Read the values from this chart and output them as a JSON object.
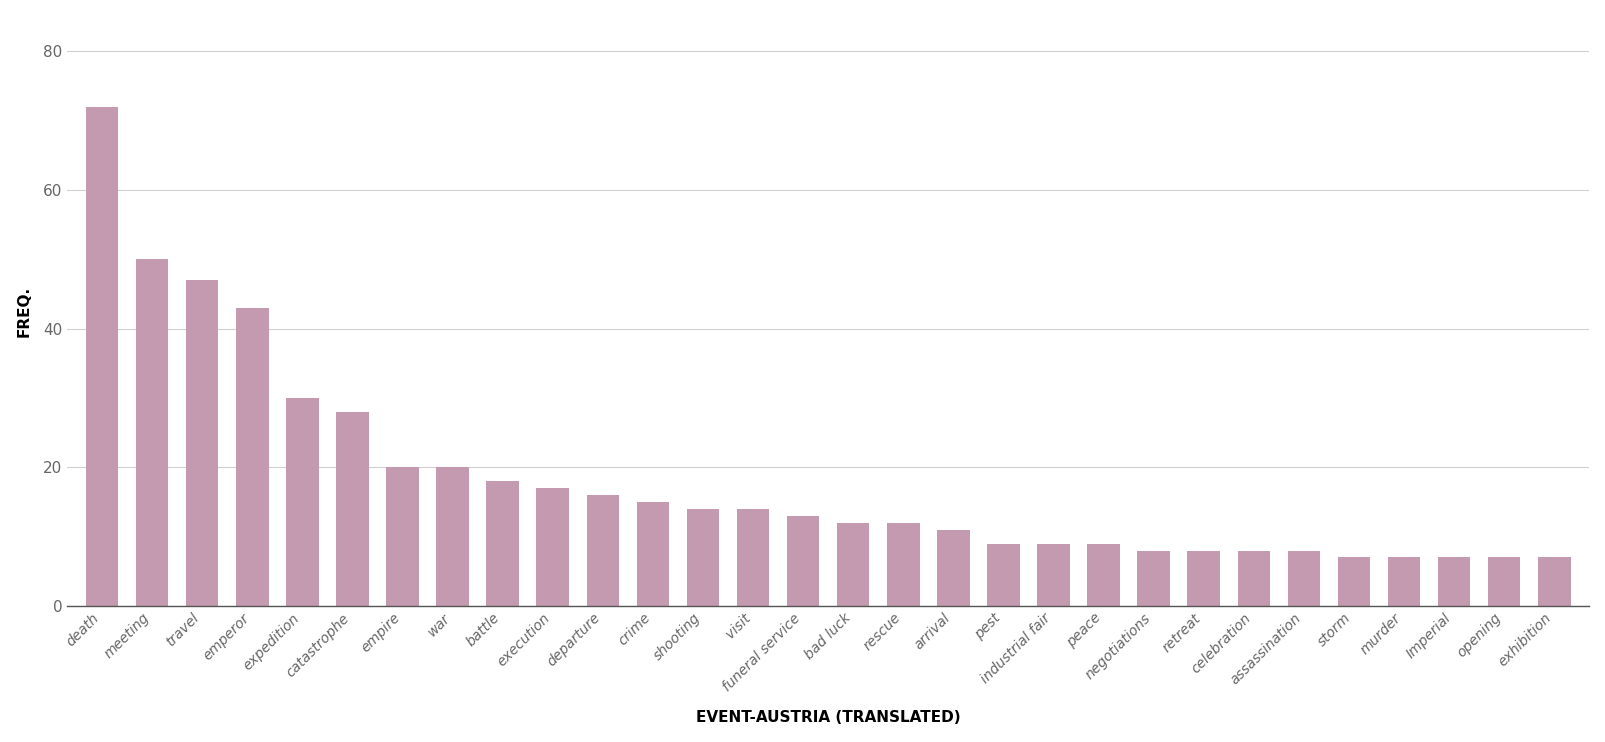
{
  "categories": [
    "death",
    "meeting",
    "travel",
    "emperor",
    "expedition",
    "catastrophe",
    "empire",
    "war",
    "battle",
    "execution",
    "departure",
    "crime",
    "shooting",
    "visit",
    "funeral service",
    "bad luck",
    "rescue",
    "arrival",
    "pest",
    "industrial fair",
    "peace",
    "negotiations",
    "retreat",
    "celebration",
    "assassination",
    "storm",
    "murder",
    "Imperial",
    "opening",
    "exhibition"
  ],
  "values": [
    72,
    50,
    47,
    43,
    30,
    28,
    20,
    20,
    18,
    17,
    16,
    15,
    14,
    14,
    13,
    12,
    12,
    11,
    9,
    9,
    9,
    8,
    8,
    8,
    8,
    7,
    7,
    7,
    7,
    7
  ],
  "bar_color": "#c49ab0",
  "xlabel": "EVENT-AUSTRIA (TRANSLATED)",
  "ylabel": "FREQ.",
  "ylim": [
    0,
    85
  ],
  "yticks": [
    0,
    20,
    40,
    60,
    80
  ],
  "background_color": "#ffffff",
  "grid_color": "#d0d0d0",
  "xlabel_fontsize": 11,
  "ylabel_fontsize": 11,
  "tick_label_fontsize": 10,
  "ytick_label_fontsize": 11,
  "bar_width": 0.65
}
